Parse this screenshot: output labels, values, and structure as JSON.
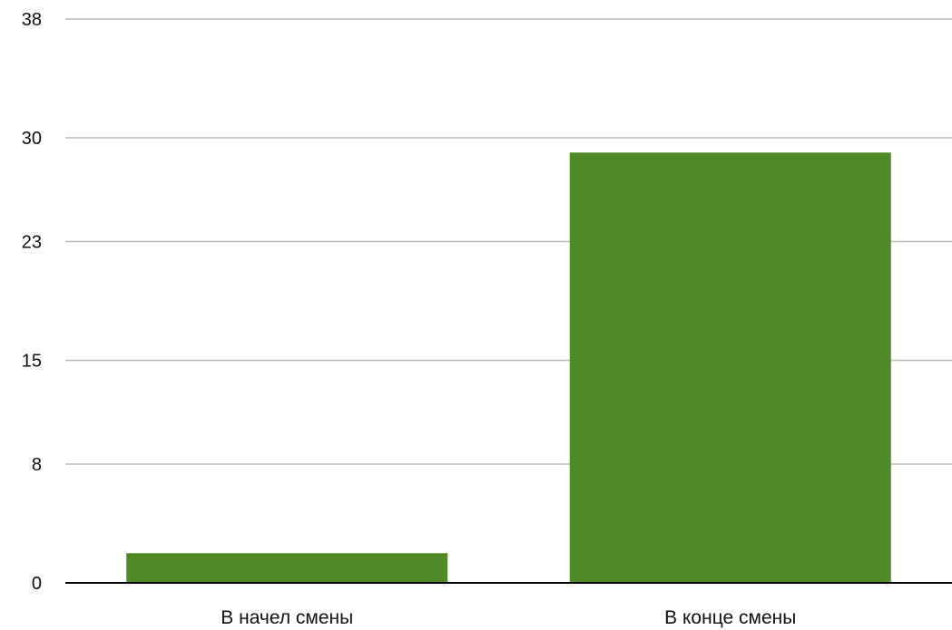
{
  "chart_data": {
    "type": "bar",
    "categories": [
      "В начел смены",
      "В конце смены"
    ],
    "values": [
      2,
      29
    ],
    "ylim": [
      0,
      38
    ],
    "yticks": [
      0,
      8,
      15,
      23,
      30,
      38
    ],
    "ytick_labels": [
      "0",
      "8",
      "15",
      "23",
      "30",
      "38"
    ],
    "grid": true,
    "legend": "none",
    "title": "",
    "xlabel": "",
    "ylabel": "",
    "colors": {
      "bar": "#4e8a25",
      "grid": "#b8b8b8",
      "baseline": "#000000"
    }
  }
}
